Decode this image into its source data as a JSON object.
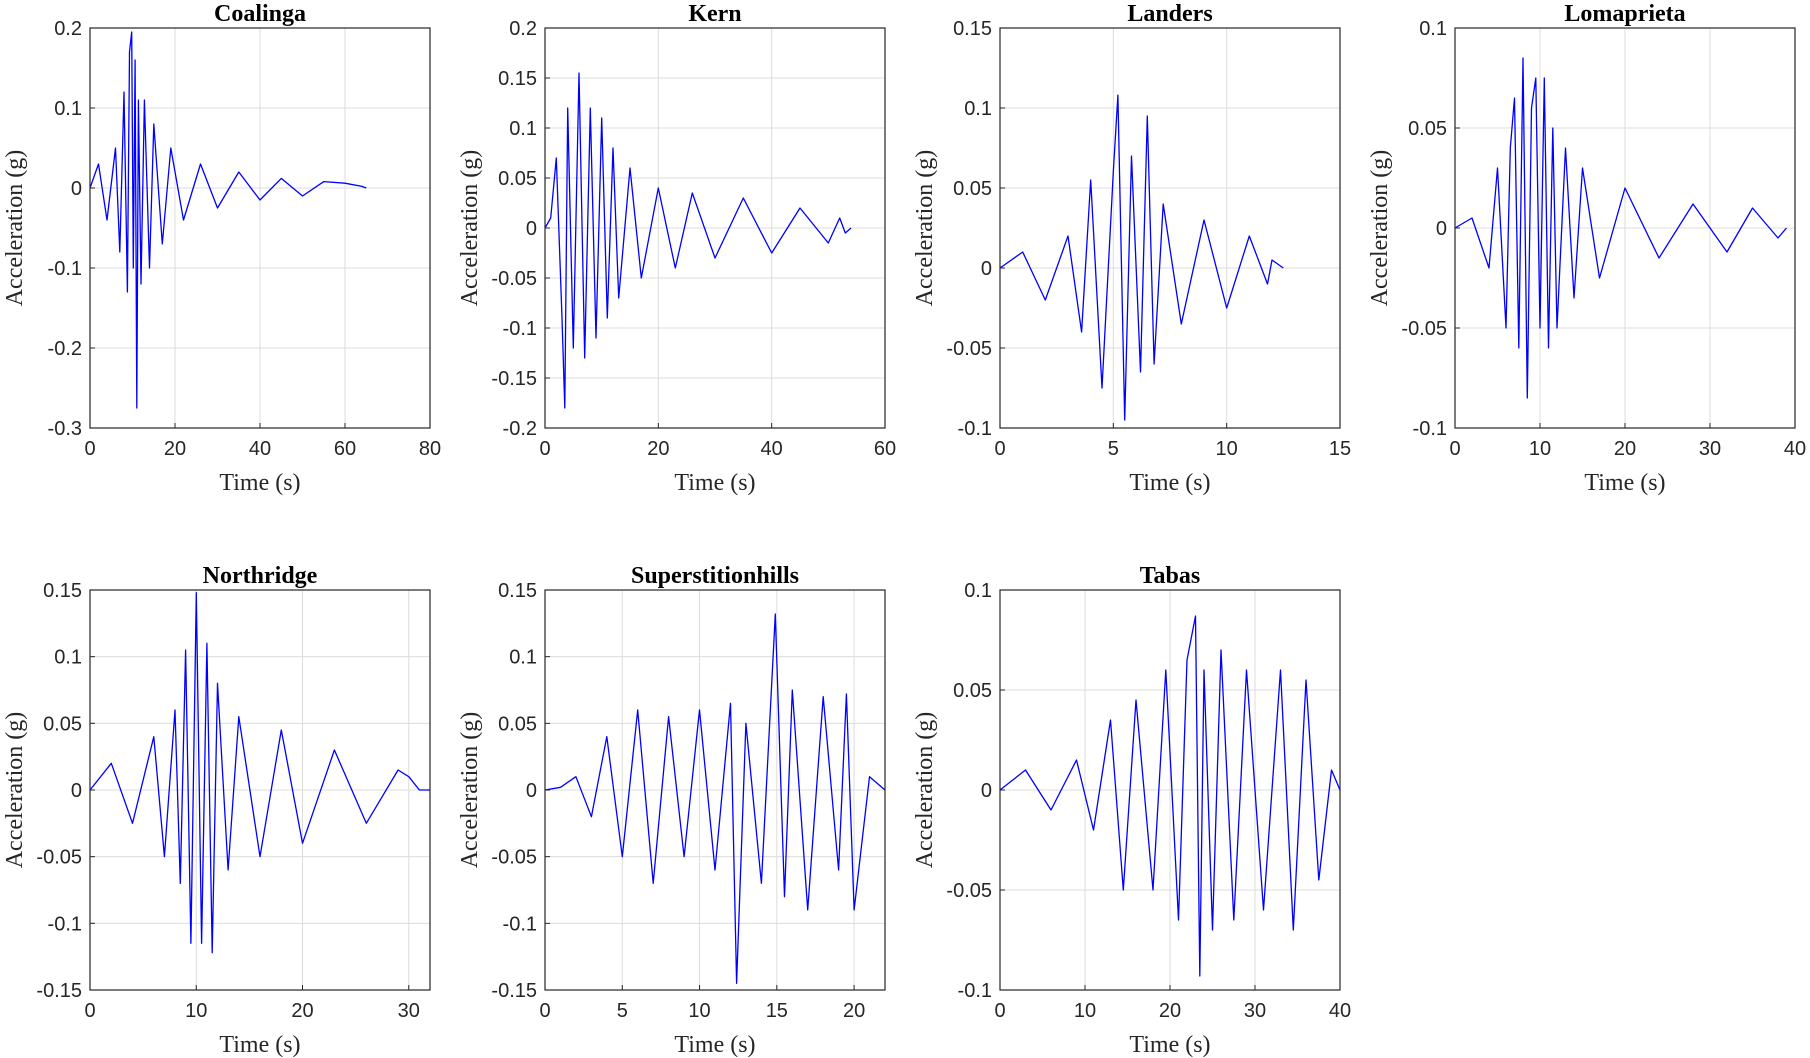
{
  "chart_data": [
    {
      "type": "line",
      "title": "Coalinga",
      "xlabel": "Time (s)",
      "ylabel": "Acceleration (g)",
      "xlim": [
        0,
        80
      ],
      "ylim": [
        -0.3,
        0.2
      ],
      "xticks": [
        0,
        20,
        40,
        60,
        80
      ],
      "yticks": [
        -0.3,
        -0.2,
        -0.1,
        0,
        0.1,
        0.2
      ],
      "xtick_labels": [
        "0",
        "20",
        "40",
        "60",
        "80"
      ],
      "ytick_labels": [
        "-0.3",
        "-0.2",
        "-0.1",
        "0",
        "0.1",
        "0.2"
      ],
      "grid": true,
      "color": "#0000ff",
      "series": [
        {
          "x": [
            0,
            2,
            4,
            6,
            7,
            8,
            8.8,
            9.3,
            9.8,
            10.2,
            10.6,
            11,
            11.4,
            12,
            12.8,
            14,
            15,
            17,
            19,
            22,
            26,
            30,
            35,
            40,
            45,
            50,
            55,
            60,
            64,
            65
          ],
          "y": [
            0,
            0.03,
            -0.04,
            0.05,
            -0.08,
            0.12,
            -0.13,
            0.17,
            0.195,
            -0.1,
            0.16,
            -0.275,
            0.11,
            -0.12,
            0.11,
            -0.1,
            0.08,
            -0.07,
            0.05,
            -0.04,
            0.03,
            -0.025,
            0.02,
            -0.015,
            0.012,
            -0.01,
            0.008,
            0.006,
            0.002,
            0
          ]
        }
      ]
    },
    {
      "type": "line",
      "title": "Kern",
      "xlabel": "Time (s)",
      "ylabel": "Acceleration (g)",
      "xlim": [
        0,
        60
      ],
      "ylim": [
        -0.2,
        0.2
      ],
      "xticks": [
        0,
        20,
        40,
        60
      ],
      "yticks": [
        -0.2,
        -0.15,
        -0.1,
        -0.05,
        0,
        0.05,
        0.1,
        0.15,
        0.2
      ],
      "xtick_labels": [
        "0",
        "20",
        "40",
        "60"
      ],
      "ytick_labels": [
        "-0.2",
        "-0.15",
        "-0.1",
        "-0.05",
        "0",
        "0.05",
        "0.1",
        "0.15",
        "0.2"
      ],
      "grid": true,
      "color": "#0000ff",
      "series": [
        {
          "x": [
            0,
            1,
            2,
            3,
            3.5,
            4,
            5,
            6,
            7,
            8,
            9,
            10,
            11,
            12,
            13,
            15,
            17,
            20,
            23,
            26,
            30,
            35,
            40,
            45,
            50,
            52,
            53,
            54
          ],
          "y": [
            0,
            0.01,
            0.07,
            -0.09,
            -0.18,
            0.12,
            -0.12,
            0.155,
            -0.13,
            0.12,
            -0.11,
            0.11,
            -0.09,
            0.08,
            -0.07,
            0.06,
            -0.05,
            0.04,
            -0.04,
            0.035,
            -0.03,
            0.03,
            -0.025,
            0.02,
            -0.015,
            0.01,
            -0.005,
            0
          ]
        }
      ]
    },
    {
      "type": "line",
      "title": "Landers",
      "xlabel": "Time (s)",
      "ylabel": "Acceleration (g)",
      "xlim": [
        0,
        15
      ],
      "ylim": [
        -0.1,
        0.15
      ],
      "xticks": [
        0,
        5,
        10,
        15
      ],
      "yticks": [
        -0.1,
        -0.05,
        0,
        0.05,
        0.1,
        0.15
      ],
      "xtick_labels": [
        "0",
        "5",
        "10",
        "15"
      ],
      "ytick_labels": [
        "-0.1",
        "-0.05",
        "0",
        "0.05",
        "0.1",
        "0.15"
      ],
      "grid": true,
      "color": "#0000ff",
      "series": [
        {
          "x": [
            0,
            1,
            2,
            3,
            3.6,
            4,
            4.5,
            5,
            5.2,
            5.5,
            5.8,
            6.2,
            6.5,
            6.8,
            7.2,
            8,
            9,
            10,
            11,
            11.8,
            12,
            12.5
          ],
          "y": [
            0,
            0.01,
            -0.02,
            0.02,
            -0.04,
            0.055,
            -0.075,
            0.06,
            0.108,
            -0.095,
            0.07,
            -0.065,
            0.095,
            -0.06,
            0.04,
            -0.035,
            0.03,
            -0.025,
            0.02,
            -0.01,
            0.005,
            0
          ]
        }
      ]
    },
    {
      "type": "line",
      "title": "Lomaprieta",
      "xlabel": "Time (s)",
      "ylabel": "Acceleration (g)",
      "xlim": [
        0,
        40
      ],
      "ylim": [
        -0.1,
        0.1
      ],
      "xticks": [
        0,
        10,
        20,
        30,
        40
      ],
      "yticks": [
        -0.1,
        -0.05,
        0,
        0.05,
        0.1
      ],
      "xtick_labels": [
        "0",
        "10",
        "20",
        "30",
        "40"
      ],
      "ytick_labels": [
        "-0.1",
        "-0.05",
        "0",
        "0.05",
        "0.1"
      ],
      "grid": true,
      "color": "#0000ff",
      "series": [
        {
          "x": [
            0,
            2,
            4,
            5,
            6,
            6.5,
            7,
            7.5,
            8,
            8.5,
            9,
            9.5,
            10,
            10.5,
            11,
            11.5,
            12,
            13,
            14,
            15,
            17,
            20,
            24,
            28,
            32,
            35,
            38,
            39
          ],
          "y": [
            0,
            0.005,
            -0.02,
            0.03,
            -0.05,
            0.04,
            0.065,
            -0.06,
            0.085,
            -0.085,
            0.06,
            0.075,
            -0.05,
            0.075,
            -0.06,
            0.05,
            -0.05,
            0.04,
            -0.035,
            0.03,
            -0.025,
            0.02,
            -0.015,
            0.012,
            -0.012,
            0.01,
            -0.005,
            0
          ]
        }
      ]
    },
    {
      "type": "line",
      "title": "Northridge",
      "xlabel": "Time (s)",
      "ylabel": "Acceleration (g)",
      "xlim": [
        0,
        32
      ],
      "ylim": [
        -0.15,
        0.15
      ],
      "xticks": [
        0,
        10,
        20,
        30
      ],
      "yticks": [
        -0.15,
        -0.1,
        -0.05,
        0,
        0.05,
        0.1,
        0.15
      ],
      "xtick_labels": [
        "0",
        "10",
        "20",
        "30"
      ],
      "ytick_labels": [
        "-0.15",
        "-0.1",
        "-0.05",
        "0",
        "0.05",
        "0.1",
        "0.15"
      ],
      "grid": true,
      "color": "#0000ff",
      "series": [
        {
          "x": [
            0,
            2,
            4,
            6,
            7,
            8,
            8.5,
            9,
            9.5,
            10,
            10.5,
            11,
            11.5,
            12,
            13,
            14,
            16,
            18,
            20,
            23,
            26,
            29,
            30,
            31,
            32
          ],
          "y": [
            0,
            0.02,
            -0.025,
            0.04,
            -0.05,
            0.06,
            -0.07,
            0.105,
            -0.115,
            0.148,
            -0.115,
            0.11,
            -0.122,
            0.08,
            -0.06,
            0.055,
            -0.05,
            0.045,
            -0.04,
            0.03,
            -0.025,
            0.015,
            0.01,
            0,
            0
          ]
        }
      ]
    },
    {
      "type": "line",
      "title": "Superstitionhills",
      "xlabel": "Time (s)",
      "ylabel": "Acceleration (g)",
      "xlim": [
        0,
        22
      ],
      "ylim": [
        -0.15,
        0.15
      ],
      "xticks": [
        0,
        5,
        10,
        15,
        20
      ],
      "yticks": [
        -0.15,
        -0.1,
        -0.05,
        0,
        0.05,
        0.1,
        0.15
      ],
      "xtick_labels": [
        "0",
        "5",
        "10",
        "15",
        "20"
      ],
      "ytick_labels": [
        "-0.15",
        "-0.1",
        "-0.05",
        "0",
        "0.05",
        "0.1",
        "0.15"
      ],
      "grid": true,
      "color": "#0000ff",
      "series": [
        {
          "x": [
            0,
            1,
            2,
            3,
            4,
            5,
            6,
            7,
            8,
            9,
            10,
            11,
            12,
            12.4,
            13,
            14,
            14.9,
            15.5,
            16,
            17,
            18,
            19,
            19.5,
            20,
            21,
            22
          ],
          "y": [
            0,
            0.002,
            0.01,
            -0.02,
            0.04,
            -0.05,
            0.06,
            -0.07,
            0.055,
            -0.05,
            0.06,
            -0.06,
            0.065,
            -0.145,
            0.05,
            -0.07,
            0.132,
            -0.08,
            0.075,
            -0.09,
            0.07,
            -0.06,
            0.072,
            -0.09,
            0.01,
            0
          ]
        }
      ]
    },
    {
      "type": "line",
      "title": "Tabas",
      "xlabel": "Time (s)",
      "ylabel": "Acceleration (g)",
      "xlim": [
        0,
        40
      ],
      "ylim": [
        -0.1,
        0.1
      ],
      "xticks": [
        0,
        10,
        20,
        30,
        40
      ],
      "yticks": [
        -0.1,
        -0.05,
        0,
        0.05,
        0.1
      ],
      "xtick_labels": [
        "0",
        "10",
        "20",
        "30",
        "40"
      ],
      "ytick_labels": [
        "-0.1",
        "-0.05",
        "0",
        "0.05",
        "0.1"
      ],
      "grid": true,
      "color": "#0000ff",
      "series": [
        {
          "x": [
            0,
            3,
            6,
            9,
            11,
            13,
            14.5,
            16,
            18,
            19.5,
            21,
            22,
            23,
            23.5,
            24,
            25,
            26,
            27.5,
            29,
            31,
            33,
            34.5,
            36,
            37.5,
            39,
            40
          ],
          "y": [
            0,
            0.01,
            -0.01,
            0.015,
            -0.02,
            0.035,
            -0.05,
            0.045,
            -0.05,
            0.06,
            -0.065,
            0.065,
            0.087,
            -0.093,
            0.06,
            -0.07,
            0.07,
            -0.065,
            0.06,
            -0.06,
            0.06,
            -0.07,
            0.055,
            -0.045,
            0.01,
            0
          ]
        }
      ]
    }
  ]
}
